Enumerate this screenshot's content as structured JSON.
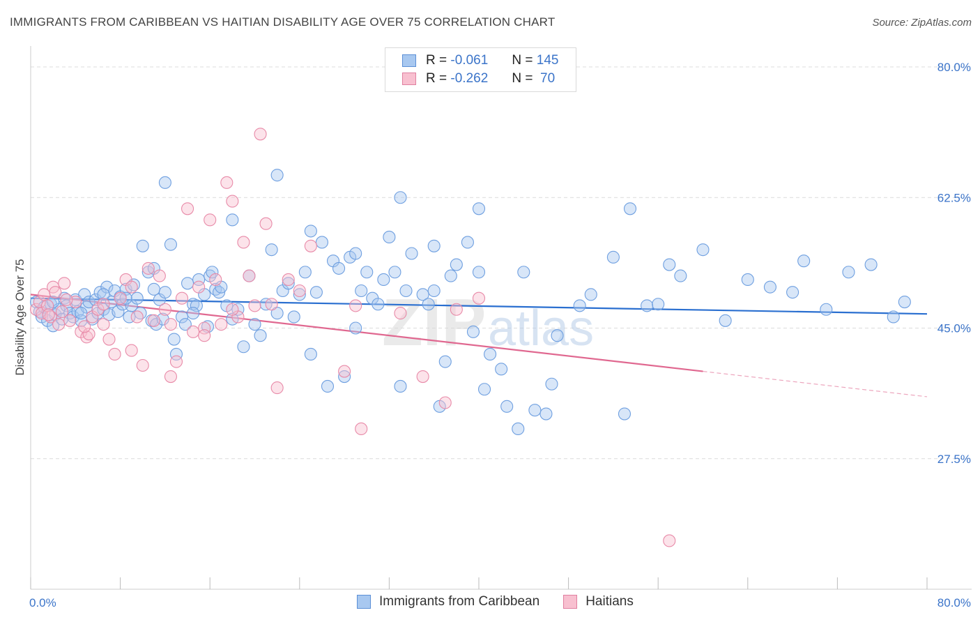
{
  "title": "IMMIGRANTS FROM CARIBBEAN VS HAITIAN DISABILITY AGE OVER 75 CORRELATION CHART",
  "source": "Source: ZipAtlas.com",
  "watermark": {
    "zip": "ZIP",
    "atlas": "atlas"
  },
  "legend": {
    "rows": [
      {
        "r_label": "R =",
        "r_value": "-0.061",
        "n_label": "N =",
        "n_value": "145",
        "color": "#a8c8f0",
        "border": "#5b8fd6"
      },
      {
        "r_label": "R =",
        "r_value": "-0.262",
        "n_label": "N =",
        "n_value": " 70",
        "color": "#f8c0d0",
        "border": "#e07fa0"
      }
    ]
  },
  "bottom_legend": {
    "series1": "Immigrants from Caribbean",
    "series2": "Haitians"
  },
  "chart_data": {
    "type": "scatter",
    "ylabel": "Disability Age Over 75",
    "xlim": [
      0,
      80
    ],
    "ylim": [
      10,
      82
    ],
    "yticks": [
      80.0,
      62.5,
      45.0,
      27.5
    ],
    "ytick_labels": [
      "80.0%",
      "62.5%",
      "45.0%",
      "27.5%"
    ],
    "xtick_labels": [
      "0.0%",
      "80.0%"
    ],
    "grid": "horizontal dashed",
    "series": [
      {
        "name": "Immigrants from Caribbean",
        "color": "#a8c8f0",
        "edge": "#6e9fe0",
        "trend_color": "#2a6fd0",
        "trend": {
          "x": [
            0,
            80
          ],
          "y": [
            49.0,
            46.9
          ]
        },
        "points": [
          [
            0.5,
            48.5
          ],
          [
            0.8,
            47.2
          ],
          [
            1.0,
            46.5
          ],
          [
            1.2,
            47.8
          ],
          [
            1.5,
            46.0
          ],
          [
            1.8,
            48.2
          ],
          [
            2.0,
            45.3
          ],
          [
            2.2,
            46.8
          ],
          [
            2.5,
            47.5
          ],
          [
            2.8,
            46.2
          ],
          [
            3.0,
            49.0
          ],
          [
            3.2,
            48.0
          ],
          [
            3.5,
            47.0
          ],
          [
            3.8,
            46.5
          ],
          [
            4.0,
            48.8
          ],
          [
            4.2,
            47.2
          ],
          [
            4.5,
            46.0
          ],
          [
            4.8,
            49.5
          ],
          [
            5.0,
            47.8
          ],
          [
            5.2,
            48.5
          ],
          [
            5.5,
            46.2
          ],
          [
            5.8,
            48.8
          ],
          [
            6.0,
            47.0
          ],
          [
            6.2,
            49.8
          ],
          [
            6.5,
            47.5
          ],
          [
            6.8,
            50.5
          ],
          [
            7.0,
            46.8
          ],
          [
            7.2,
            48.5
          ],
          [
            7.5,
            50.0
          ],
          [
            7.8,
            47.2
          ],
          [
            8.0,
            49.2
          ],
          [
            8.2,
            48.2
          ],
          [
            8.5,
            50.2
          ],
          [
            8.8,
            46.5
          ],
          [
            9.0,
            48.0
          ],
          [
            9.2,
            50.8
          ],
          [
            9.5,
            49.0
          ],
          [
            9.8,
            47.0
          ],
          [
            10.0,
            56.0
          ],
          [
            10.5,
            52.5
          ],
          [
            10.8,
            46.0
          ],
          [
            11.0,
            50.2
          ],
          [
            11.2,
            45.5
          ],
          [
            11.5,
            48.8
          ],
          [
            11.8,
            46.2
          ],
          [
            12.0,
            49.8
          ],
          [
            12.5,
            56.2
          ],
          [
            12.8,
            43.5
          ],
          [
            13.0,
            41.5
          ],
          [
            13.5,
            46.5
          ],
          [
            13.8,
            45.5
          ],
          [
            14.0,
            51.0
          ],
          [
            14.5,
            48.2
          ],
          [
            14.8,
            48.0
          ],
          [
            15.0,
            51.5
          ],
          [
            15.5,
            49.5
          ],
          [
            15.8,
            45.2
          ],
          [
            16.0,
            52.0
          ],
          [
            16.2,
            52.5
          ],
          [
            16.5,
            50.2
          ],
          [
            16.8,
            49.8
          ],
          [
            17.0,
            50.5
          ],
          [
            17.5,
            48.0
          ],
          [
            18.0,
            46.2
          ],
          [
            18.5,
            47.5
          ],
          [
            19.0,
            42.5
          ],
          [
            19.5,
            52.0
          ],
          [
            20.0,
            45.5
          ],
          [
            20.5,
            44.0
          ],
          [
            21.0,
            48.2
          ],
          [
            21.5,
            55.5
          ],
          [
            22.0,
            47.0
          ],
          [
            22.5,
            50.0
          ],
          [
            23.0,
            51.0
          ],
          [
            23.5,
            46.5
          ],
          [
            24.0,
            49.5
          ],
          [
            24.5,
            52.5
          ],
          [
            25.0,
            41.5
          ],
          [
            25.5,
            49.8
          ],
          [
            26.0,
            56.5
          ],
          [
            26.5,
            37.2
          ],
          [
            27.0,
            54.0
          ],
          [
            27.5,
            53.0
          ],
          [
            28.0,
            38.5
          ],
          [
            28.5,
            54.5
          ],
          [
            29.0,
            45.0
          ],
          [
            29.5,
            50.0
          ],
          [
            30.0,
            52.5
          ],
          [
            30.5,
            49.0
          ],
          [
            31.0,
            48.2
          ],
          [
            31.5,
            51.5
          ],
          [
            32.0,
            57.2
          ],
          [
            32.5,
            52.5
          ],
          [
            33.0,
            37.2
          ],
          [
            33.5,
            50.0
          ],
          [
            34.0,
            55.0
          ],
          [
            35.0,
            49.5
          ],
          [
            35.5,
            48.2
          ],
          [
            36.0,
            50.0
          ],
          [
            36.5,
            34.5
          ],
          [
            37.0,
            40.5
          ],
          [
            37.5,
            52.0
          ],
          [
            38.0,
            53.5
          ],
          [
            39.0,
            56.5
          ],
          [
            39.5,
            44.5
          ],
          [
            40.0,
            52.5
          ],
          [
            40.5,
            36.8
          ],
          [
            41.0,
            41.5
          ],
          [
            42.0,
            39.5
          ],
          [
            42.5,
            34.5
          ],
          [
            43.5,
            31.5
          ],
          [
            44.0,
            52.5
          ],
          [
            45.0,
            34.0
          ],
          [
            46.0,
            33.5
          ],
          [
            46.5,
            37.5
          ],
          [
            47.0,
            44.0
          ],
          [
            49.0,
            48.0
          ],
          [
            50.0,
            49.5
          ],
          [
            52.0,
            54.5
          ],
          [
            53.0,
            33.5
          ],
          [
            55.0,
            48.0
          ],
          [
            56.0,
            48.2
          ],
          [
            57.0,
            53.5
          ],
          [
            58.0,
            52.0
          ],
          [
            60.0,
            55.5
          ],
          [
            62.0,
            46.0
          ],
          [
            64.0,
            51.5
          ],
          [
            66.0,
            50.5
          ],
          [
            68.0,
            49.8
          ],
          [
            69.0,
            54.0
          ],
          [
            71.0,
            47.5
          ],
          [
            73.0,
            52.5
          ],
          [
            75.0,
            53.5
          ],
          [
            77.0,
            46.5
          ],
          [
            78.0,
            48.5
          ],
          [
            12.0,
            64.5
          ],
          [
            22.0,
            65.5
          ],
          [
            33.0,
            62.5
          ],
          [
            40.0,
            61.0
          ],
          [
            11.0,
            53.0
          ],
          [
            18.0,
            59.5
          ],
          [
            25.0,
            58.0
          ],
          [
            29.0,
            55.0
          ],
          [
            36.0,
            56.0
          ],
          [
            53.5,
            61.0
          ],
          [
            2.0,
            48.5
          ],
          [
            4.5,
            47.0
          ],
          [
            6.5,
            49.5
          ],
          [
            8.5,
            49.0
          ],
          [
            14.5,
            47.0
          ]
        ]
      },
      {
        "name": "Haitians",
        "color": "#f8c0d0",
        "edge": "#e88aa8",
        "trend_color": "#e06890",
        "trend": {
          "x": [
            0,
            60
          ],
          "y": [
            49.5,
            39.2
          ]
        },
        "trend_dash": {
          "x": [
            60,
            80
          ],
          "y": [
            39.2,
            35.8
          ]
        },
        "points": [
          [
            0.5,
            47.5
          ],
          [
            0.8,
            48.5
          ],
          [
            1.0,
            47.0
          ],
          [
            1.2,
            49.5
          ],
          [
            1.5,
            48.0
          ],
          [
            1.8,
            46.5
          ],
          [
            2.0,
            50.5
          ],
          [
            2.2,
            49.8
          ],
          [
            2.5,
            45.5
          ],
          [
            2.8,
            47.2
          ],
          [
            3.0,
            51.0
          ],
          [
            3.5,
            46.0
          ],
          [
            4.0,
            48.5
          ],
          [
            4.5,
            44.5
          ],
          [
            5.0,
            43.8
          ],
          [
            5.2,
            44.2
          ],
          [
            5.5,
            46.5
          ],
          [
            6.0,
            47.5
          ],
          [
            6.5,
            48.2
          ],
          [
            7.0,
            43.5
          ],
          [
            7.5,
            41.5
          ],
          [
            8.0,
            49.0
          ],
          [
            8.5,
            51.5
          ],
          [
            9.0,
            42.0
          ],
          [
            9.5,
            46.5
          ],
          [
            10.0,
            40.0
          ],
          [
            10.5,
            53.0
          ],
          [
            11.0,
            46.0
          ],
          [
            11.5,
            52.0
          ],
          [
            12.0,
            47.5
          ],
          [
            12.5,
            45.5
          ],
          [
            13.0,
            40.5
          ],
          [
            13.5,
            49.0
          ],
          [
            14.0,
            61.0
          ],
          [
            14.5,
            44.5
          ],
          [
            15.0,
            50.5
          ],
          [
            15.5,
            45.0
          ],
          [
            16.0,
            59.5
          ],
          [
            16.5,
            51.5
          ],
          [
            17.0,
            45.5
          ],
          [
            17.5,
            64.5
          ],
          [
            18.0,
            62.0
          ],
          [
            18.5,
            46.5
          ],
          [
            19.0,
            56.5
          ],
          [
            19.5,
            52.0
          ],
          [
            20.0,
            48.0
          ],
          [
            21.0,
            59.0
          ],
          [
            21.5,
            48.2
          ],
          [
            22.0,
            37.0
          ],
          [
            23.0,
            51.5
          ],
          [
            24.0,
            50.0
          ],
          [
            25.0,
            56.0
          ],
          [
            28.0,
            39.2
          ],
          [
            29.0,
            48.0
          ],
          [
            29.5,
            31.5
          ],
          [
            33.0,
            47.0
          ],
          [
            35.0,
            38.5
          ],
          [
            37.0,
            35.0
          ],
          [
            38.0,
            47.5
          ],
          [
            40.0,
            49.0
          ],
          [
            57.0,
            16.5
          ],
          [
            20.5,
            71.0
          ],
          [
            12.5,
            38.5
          ],
          [
            6.5,
            45.5
          ],
          [
            9.0,
            50.5
          ],
          [
            15.5,
            44.0
          ],
          [
            18.0,
            47.5
          ],
          [
            3.2,
            48.8
          ],
          [
            1.6,
            46.8
          ],
          [
            4.8,
            45.2
          ]
        ]
      }
    ]
  }
}
